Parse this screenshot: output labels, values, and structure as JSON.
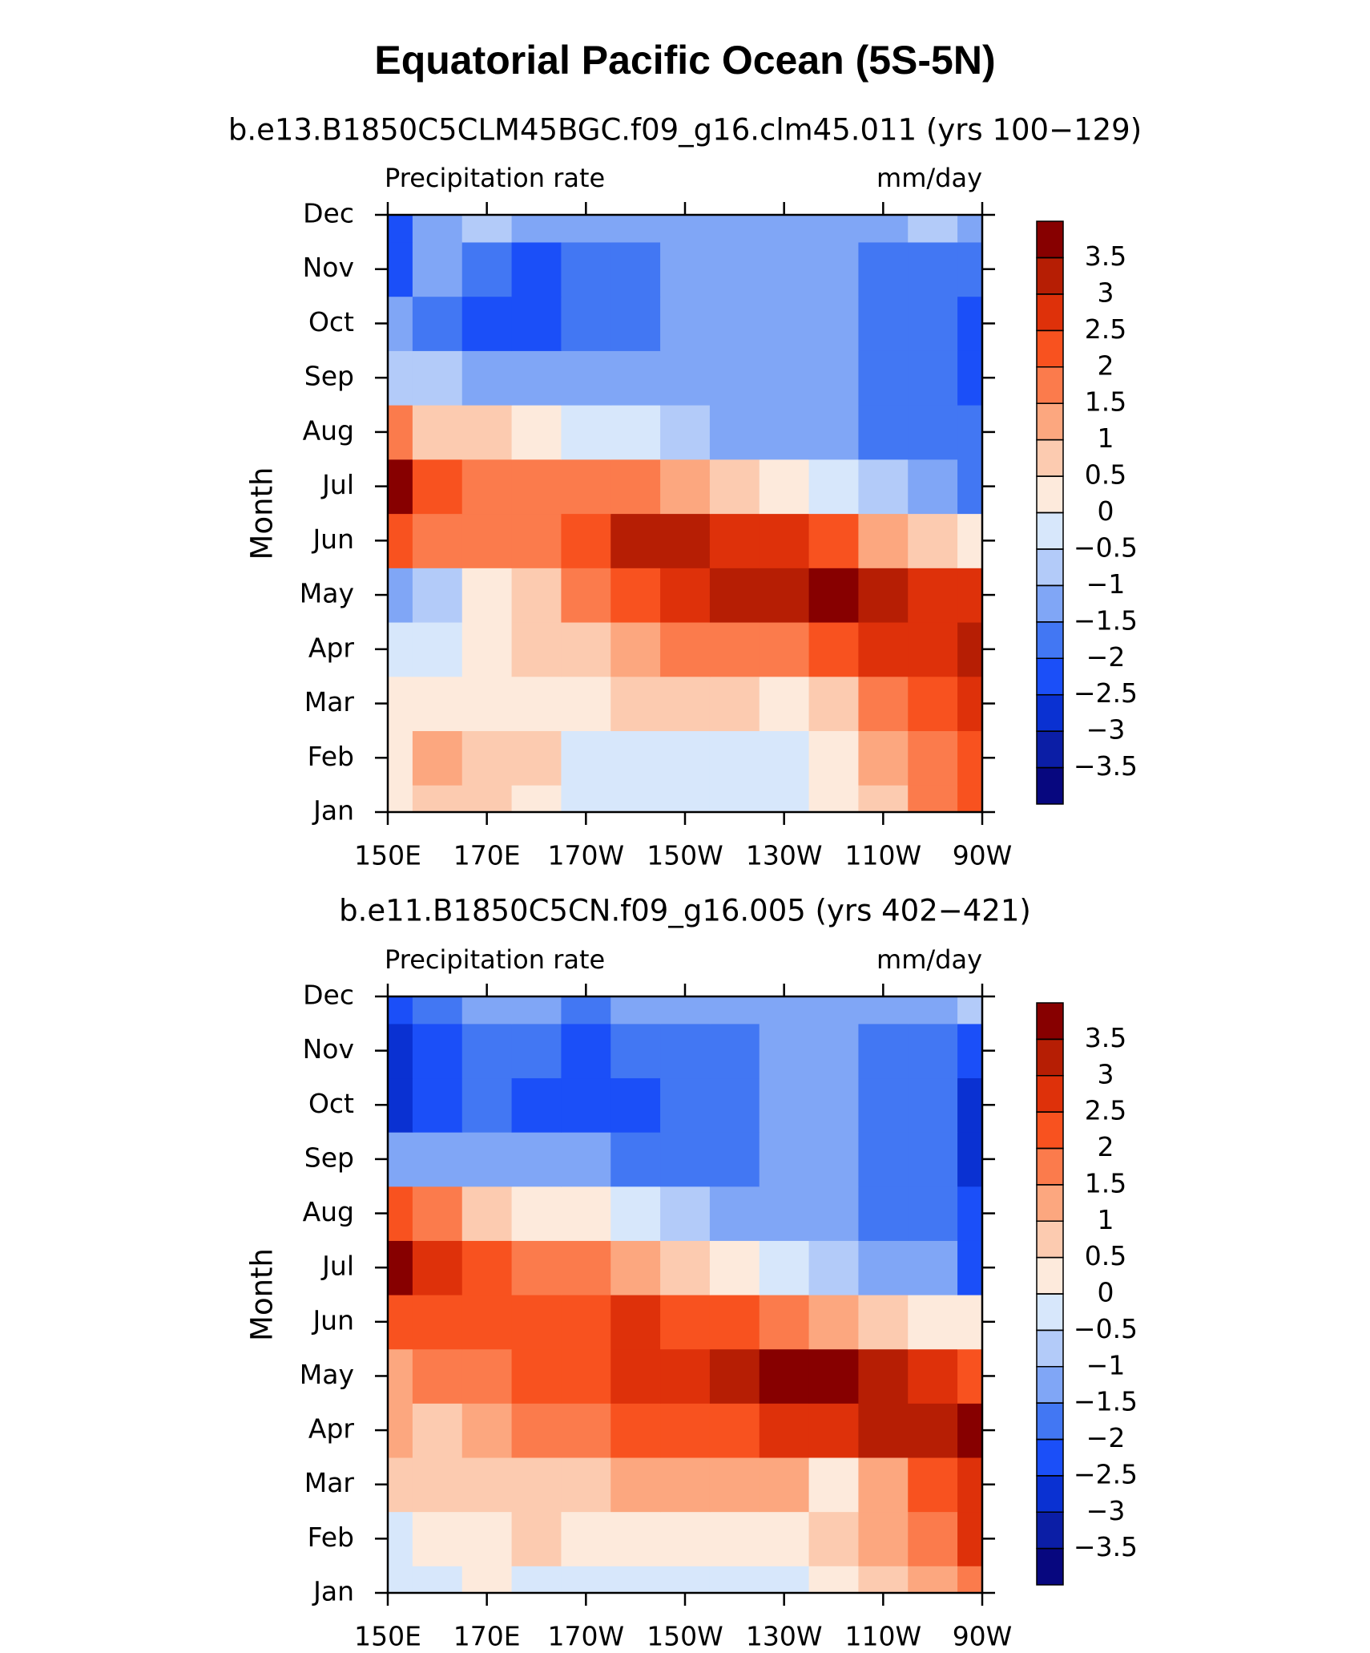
{
  "title": "Equatorial Pacific Ocean (5S-5N)",
  "chart_data": [
    {
      "type": "contour",
      "subtitle": "b.e13.B1850C5CLM45BGC.f09_g16.clm45.011 (yrs 100−129)",
      "left_label": "Precipitation rate",
      "right_label": "mm/day",
      "ylabel": "Month",
      "categories": [
        "Jan",
        "Feb",
        "Mar",
        "Apr",
        "May",
        "Jun",
        "Jul",
        "Aug",
        "Sep",
        "Oct",
        "Nov",
        "Dec"
      ],
      "x": [
        150,
        160,
        170,
        180,
        190,
        200,
        210,
        220,
        230,
        240,
        250,
        260,
        270
      ],
      "xlim": [
        150,
        270
      ],
      "xticks": [
        {
          "value": 150,
          "label": "150E"
        },
        {
          "value": 170,
          "label": "170E"
        },
        {
          "value": 190,
          "label": "170W"
        },
        {
          "value": 210,
          "label": "150W"
        },
        {
          "value": 230,
          "label": "130W"
        },
        {
          "value": 250,
          "label": "110W"
        },
        {
          "value": 270,
          "label": "90W"
        }
      ],
      "values": [
        [
          0.2,
          0.7,
          0.7,
          0.3,
          -0.3,
          -0.3,
          -0.3,
          -0.3,
          -0.3,
          0.3,
          0.8,
          1.8,
          2.3
        ],
        [
          0.3,
          1.2,
          0.6,
          0.7,
          -0.2,
          -0.3,
          -0.3,
          -0.3,
          -0.2,
          0.3,
          1.2,
          1.8,
          2.3
        ],
        [
          0.2,
          0.3,
          0.3,
          0.3,
          0.4,
          0.6,
          0.7,
          0.5,
          0.4,
          0.8,
          1.7,
          2.3,
          2.8
        ],
        [
          -0.3,
          -0.3,
          0.3,
          0.5,
          0.8,
          1.3,
          1.7,
          1.8,
          1.9,
          2.3,
          2.6,
          2.8,
          3.0
        ],
        [
          -1.2,
          -0.6,
          0.3,
          0.8,
          1.5,
          2.3,
          2.8,
          3.2,
          3.4,
          3.7,
          3.2,
          2.8,
          2.8
        ],
        [
          2.3,
          1.6,
          1.5,
          1.7,
          2.3,
          3.0,
          3.0,
          2.8,
          2.5,
          2.0,
          1.3,
          0.6,
          0.3
        ],
        [
          3.7,
          2.3,
          1.8,
          1.6,
          1.6,
          1.5,
          1.2,
          0.8,
          0.3,
          -0.3,
          -0.6,
          -1.2,
          -1.6
        ],
        [
          1.8,
          0.8,
          0.6,
          0.3,
          -0.3,
          -0.4,
          -0.8,
          -1.1,
          -1.2,
          -1.4,
          -1.6,
          -1.7,
          -2.0
        ],
        [
          -0.6,
          -0.8,
          -1.2,
          -1.3,
          -1.4,
          -1.5,
          -1.4,
          -1.4,
          -1.3,
          -1.3,
          -1.6,
          -1.8,
          -2.3
        ],
        [
          -1.2,
          -1.6,
          -2.3,
          -2.3,
          -2.0,
          -1.8,
          -1.4,
          -1.3,
          -1.3,
          -1.3,
          -1.7,
          -1.8,
          -2.3
        ],
        [
          -2.3,
          -1.3,
          -1.6,
          -2.1,
          -1.8,
          -1.6,
          -1.4,
          -1.3,
          -1.3,
          -1.3,
          -1.6,
          -1.8,
          -2.0
        ],
        [
          -2.3,
          -1.2,
          -0.8,
          -1.2,
          -1.3,
          -1.3,
          -1.3,
          -1.3,
          -1.3,
          -1.2,
          -1.2,
          -1.0,
          -1.2
        ]
      ],
      "levels": [
        {
          "value": -3.5,
          "label": "−3.5"
        },
        {
          "value": -3,
          "label": "−3"
        },
        {
          "value": -2.5,
          "label": "−2.5"
        },
        {
          "value": -2,
          "label": "−2"
        },
        {
          "value": -1.5,
          "label": "−1.5"
        },
        {
          "value": -1,
          "label": "−1"
        },
        {
          "value": -0.5,
          "label": "−0.5"
        },
        0,
        0.5,
        1,
        1.5,
        2,
        2.5,
        3,
        3.5
      ],
      "colors": [
        "#07077f",
        "#0b1ea6",
        "#0a31d2",
        "#1b4ff8",
        "#4277f3",
        "#80a6f6",
        "#b3cbf9",
        "#d7e7fb",
        "#fdeadc",
        "#fccbb0",
        "#fca77f",
        "#fb7b4c",
        "#f8521f",
        "#de310a",
        "#b61e04",
        "#870000"
      ]
    },
    {
      "type": "contour",
      "subtitle": "b.e11.B1850C5CN.f09_g16.005 (yrs 402−421)",
      "left_label": "Precipitation rate",
      "right_label": "mm/day",
      "ylabel": "Month",
      "categories": [
        "Jan",
        "Feb",
        "Mar",
        "Apr",
        "May",
        "Jun",
        "Jul",
        "Aug",
        "Sep",
        "Oct",
        "Nov",
        "Dec"
      ],
      "x": [
        150,
        160,
        170,
        180,
        190,
        200,
        210,
        220,
        230,
        240,
        250,
        260,
        270
      ],
      "xlim": [
        150,
        270
      ],
      "xticks": [
        {
          "value": 150,
          "label": "150E"
        },
        {
          "value": 170,
          "label": "170E"
        },
        {
          "value": 190,
          "label": "170W"
        },
        {
          "value": 210,
          "label": "150W"
        },
        {
          "value": 230,
          "label": "130W"
        },
        {
          "value": 250,
          "label": "110W"
        },
        {
          "value": 270,
          "label": "90W"
        }
      ],
      "values": [
        [
          -0.3,
          -0.2,
          0.1,
          -0.3,
          -0.3,
          -0.4,
          -0.3,
          -0.3,
          -0.2,
          0.2,
          0.6,
          1.2,
          1.7
        ],
        [
          -0.3,
          0.3,
          0.4,
          0.6,
          0.3,
          0.3,
          0.3,
          0.3,
          0.4,
          0.8,
          1.3,
          1.8,
          2.8
        ],
        [
          0.7,
          0.6,
          0.7,
          0.8,
          0.9,
          1.0,
          1.0,
          1.2,
          1.3,
          0.3,
          1.3,
          2.0,
          2.8
        ],
        [
          1.2,
          0.6,
          1.3,
          1.5,
          1.8,
          2.0,
          2.2,
          2.4,
          2.6,
          2.8,
          3.0,
          3.2,
          3.7
        ],
        [
          1.3,
          1.7,
          1.8,
          2.0,
          2.3,
          2.5,
          2.8,
          3.2,
          3.5,
          3.7,
          3.2,
          2.8,
          2.3
        ],
        [
          2.3,
          2.3,
          2.2,
          2.2,
          2.3,
          2.6,
          2.4,
          2.0,
          1.6,
          1.2,
          0.8,
          0.3,
          0.0
        ],
        [
          3.7,
          2.6,
          2.0,
          1.7,
          1.5,
          1.2,
          0.8,
          0.4,
          -0.3,
          -0.7,
          -1.2,
          -1.5,
          -2.2
        ],
        [
          2.3,
          1.5,
          0.8,
          0.4,
          0.0,
          -0.4,
          -0.8,
          -1.2,
          -1.4,
          -1.5,
          -1.6,
          -1.8,
          -2.4
        ],
        [
          -1.3,
          -1.4,
          -1.3,
          -1.2,
          -1.3,
          -1.6,
          -1.8,
          -1.7,
          -1.3,
          -1.3,
          -1.7,
          -2.0,
          -2.6
        ],
        [
          -2.6,
          -2.3,
          -1.8,
          -2.1,
          -2.3,
          -2.3,
          -1.8,
          -1.8,
          -1.3,
          -1.4,
          -1.8,
          -2.0,
          -2.6
        ],
        [
          -3.0,
          -2.3,
          -2.0,
          -2.0,
          -2.1,
          -1.8,
          -1.6,
          -1.6,
          -1.3,
          -1.3,
          -1.8,
          -1.8,
          -2.3
        ],
        [
          -2.3,
          -1.8,
          -1.3,
          -1.2,
          -1.6,
          -1.3,
          -1.3,
          -1.3,
          -1.2,
          -1.2,
          -1.1,
          -1.2,
          -1.0
        ]
      ],
      "levels": [
        {
          "value": -3.5,
          "label": "−3.5"
        },
        {
          "value": -3,
          "label": "−3"
        },
        {
          "value": -2.5,
          "label": "−2.5"
        },
        {
          "value": -2,
          "label": "−2"
        },
        {
          "value": -1.5,
          "label": "−1.5"
        },
        {
          "value": -1,
          "label": "−1"
        },
        {
          "value": -0.5,
          "label": "−0.5"
        },
        0,
        0.5,
        1,
        1.5,
        2,
        2.5,
        3,
        3.5
      ],
      "colors": [
        "#07077f",
        "#0b1ea6",
        "#0a31d2",
        "#1b4ff8",
        "#4277f3",
        "#80a6f6",
        "#b3cbf9",
        "#d7e7fb",
        "#fdeadc",
        "#fccbb0",
        "#fca77f",
        "#fb7b4c",
        "#f8521f",
        "#de310a",
        "#b61e04",
        "#870000"
      ]
    }
  ]
}
